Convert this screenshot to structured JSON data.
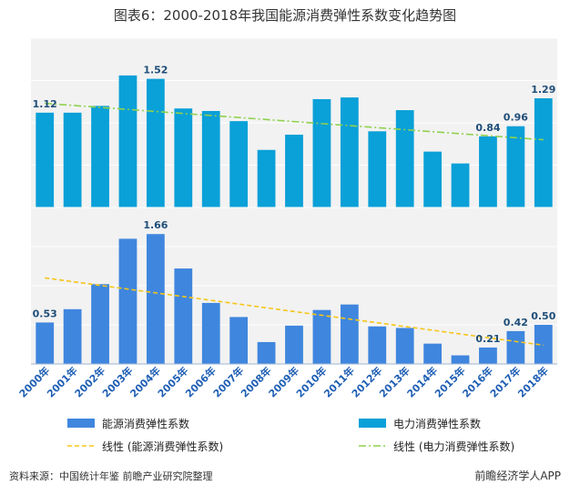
{
  "page": {
    "title": "图表6：2000-2018年我国能源消费弹性系数变化趋势图",
    "source": "资料来源：中国统计年鉴 前瞻产业研究院整理",
    "brand": "前瞻经济学人APP"
  },
  "colors": {
    "electric_bar": "#0aa0d8",
    "energy_bar": "#3f86de",
    "electric_trend": "#8fd14f",
    "energy_trend": "#f5c518",
    "panel_bg": "#f2f2f2",
    "grid": "#ffffff"
  },
  "chart_data": [
    {
      "type": "bar",
      "name_ref": "electric",
      "categories": [
        "2000年",
        "2001年",
        "2002年",
        "2003年",
        "2004年",
        "2005年",
        "2006年",
        "2007年",
        "2008年",
        "2009年",
        "2010年",
        "2011年",
        "2012年",
        "2013年",
        "2014年",
        "2015年",
        "2016年",
        "2017年",
        "2018年"
      ],
      "series": [
        {
          "name": "电力消费弹性系数",
          "values": [
            1.12,
            1.12,
            1.2,
            1.56,
            1.52,
            1.17,
            1.14,
            1.02,
            0.68,
            0.86,
            1.28,
            1.3,
            0.9,
            1.15,
            0.66,
            0.52,
            0.84,
            0.96,
            1.29
          ]
        },
        {
          "name": "线性 (电力消费弹性系数)",
          "kind": "trend",
          "start": 1.23,
          "end": 0.8
        }
      ],
      "labels": [
        {
          "index": 0,
          "text": "1.12"
        },
        {
          "index": 4,
          "text": "1.52"
        },
        {
          "index": 16,
          "text": "0.84"
        },
        {
          "index": 17,
          "text": "0.96"
        },
        {
          "index": 18,
          "text": "1.29"
        }
      ],
      "ylim": [
        0,
        2.0
      ],
      "grid": true
    },
    {
      "type": "bar",
      "name_ref": "energy",
      "categories": [
        "2000年",
        "2001年",
        "2002年",
        "2003年",
        "2004年",
        "2005年",
        "2006年",
        "2007年",
        "2008年",
        "2009年",
        "2010年",
        "2011年",
        "2012年",
        "2013年",
        "2014年",
        "2015年",
        "2016年",
        "2017年",
        "2018年"
      ],
      "series": [
        {
          "name": "能源消费弹性系数",
          "values": [
            0.53,
            0.7,
            1.02,
            1.6,
            1.66,
            1.22,
            0.78,
            0.6,
            0.28,
            0.49,
            0.69,
            0.76,
            0.48,
            0.46,
            0.26,
            0.11,
            0.21,
            0.42,
            0.5
          ]
        },
        {
          "name": "线性 (能源消费弹性系数)",
          "kind": "trend",
          "start": 1.1,
          "end": 0.24
        }
      ],
      "labels": [
        {
          "index": 0,
          "text": "0.53"
        },
        {
          "index": 4,
          "text": "1.66"
        },
        {
          "index": 16,
          "text": "0.21"
        },
        {
          "index": 17,
          "text": "0.42"
        },
        {
          "index": 18,
          "text": "0.50"
        }
      ],
      "ylim": [
        0,
        2.0
      ],
      "grid": true
    }
  ],
  "legend": {
    "placement": "bottom",
    "items": [
      {
        "text": "能源消费弹性系数",
        "kind": "bar",
        "ref": "energy"
      },
      {
        "text": "电力消费弹性系数",
        "kind": "bar",
        "ref": "electric"
      },
      {
        "text": "线性 (能源消费弹性系数)",
        "kind": "trend",
        "ref": "energy"
      },
      {
        "text": "线性 (电力消费弹性系数)",
        "kind": "trend",
        "ref": "electric"
      }
    ]
  }
}
